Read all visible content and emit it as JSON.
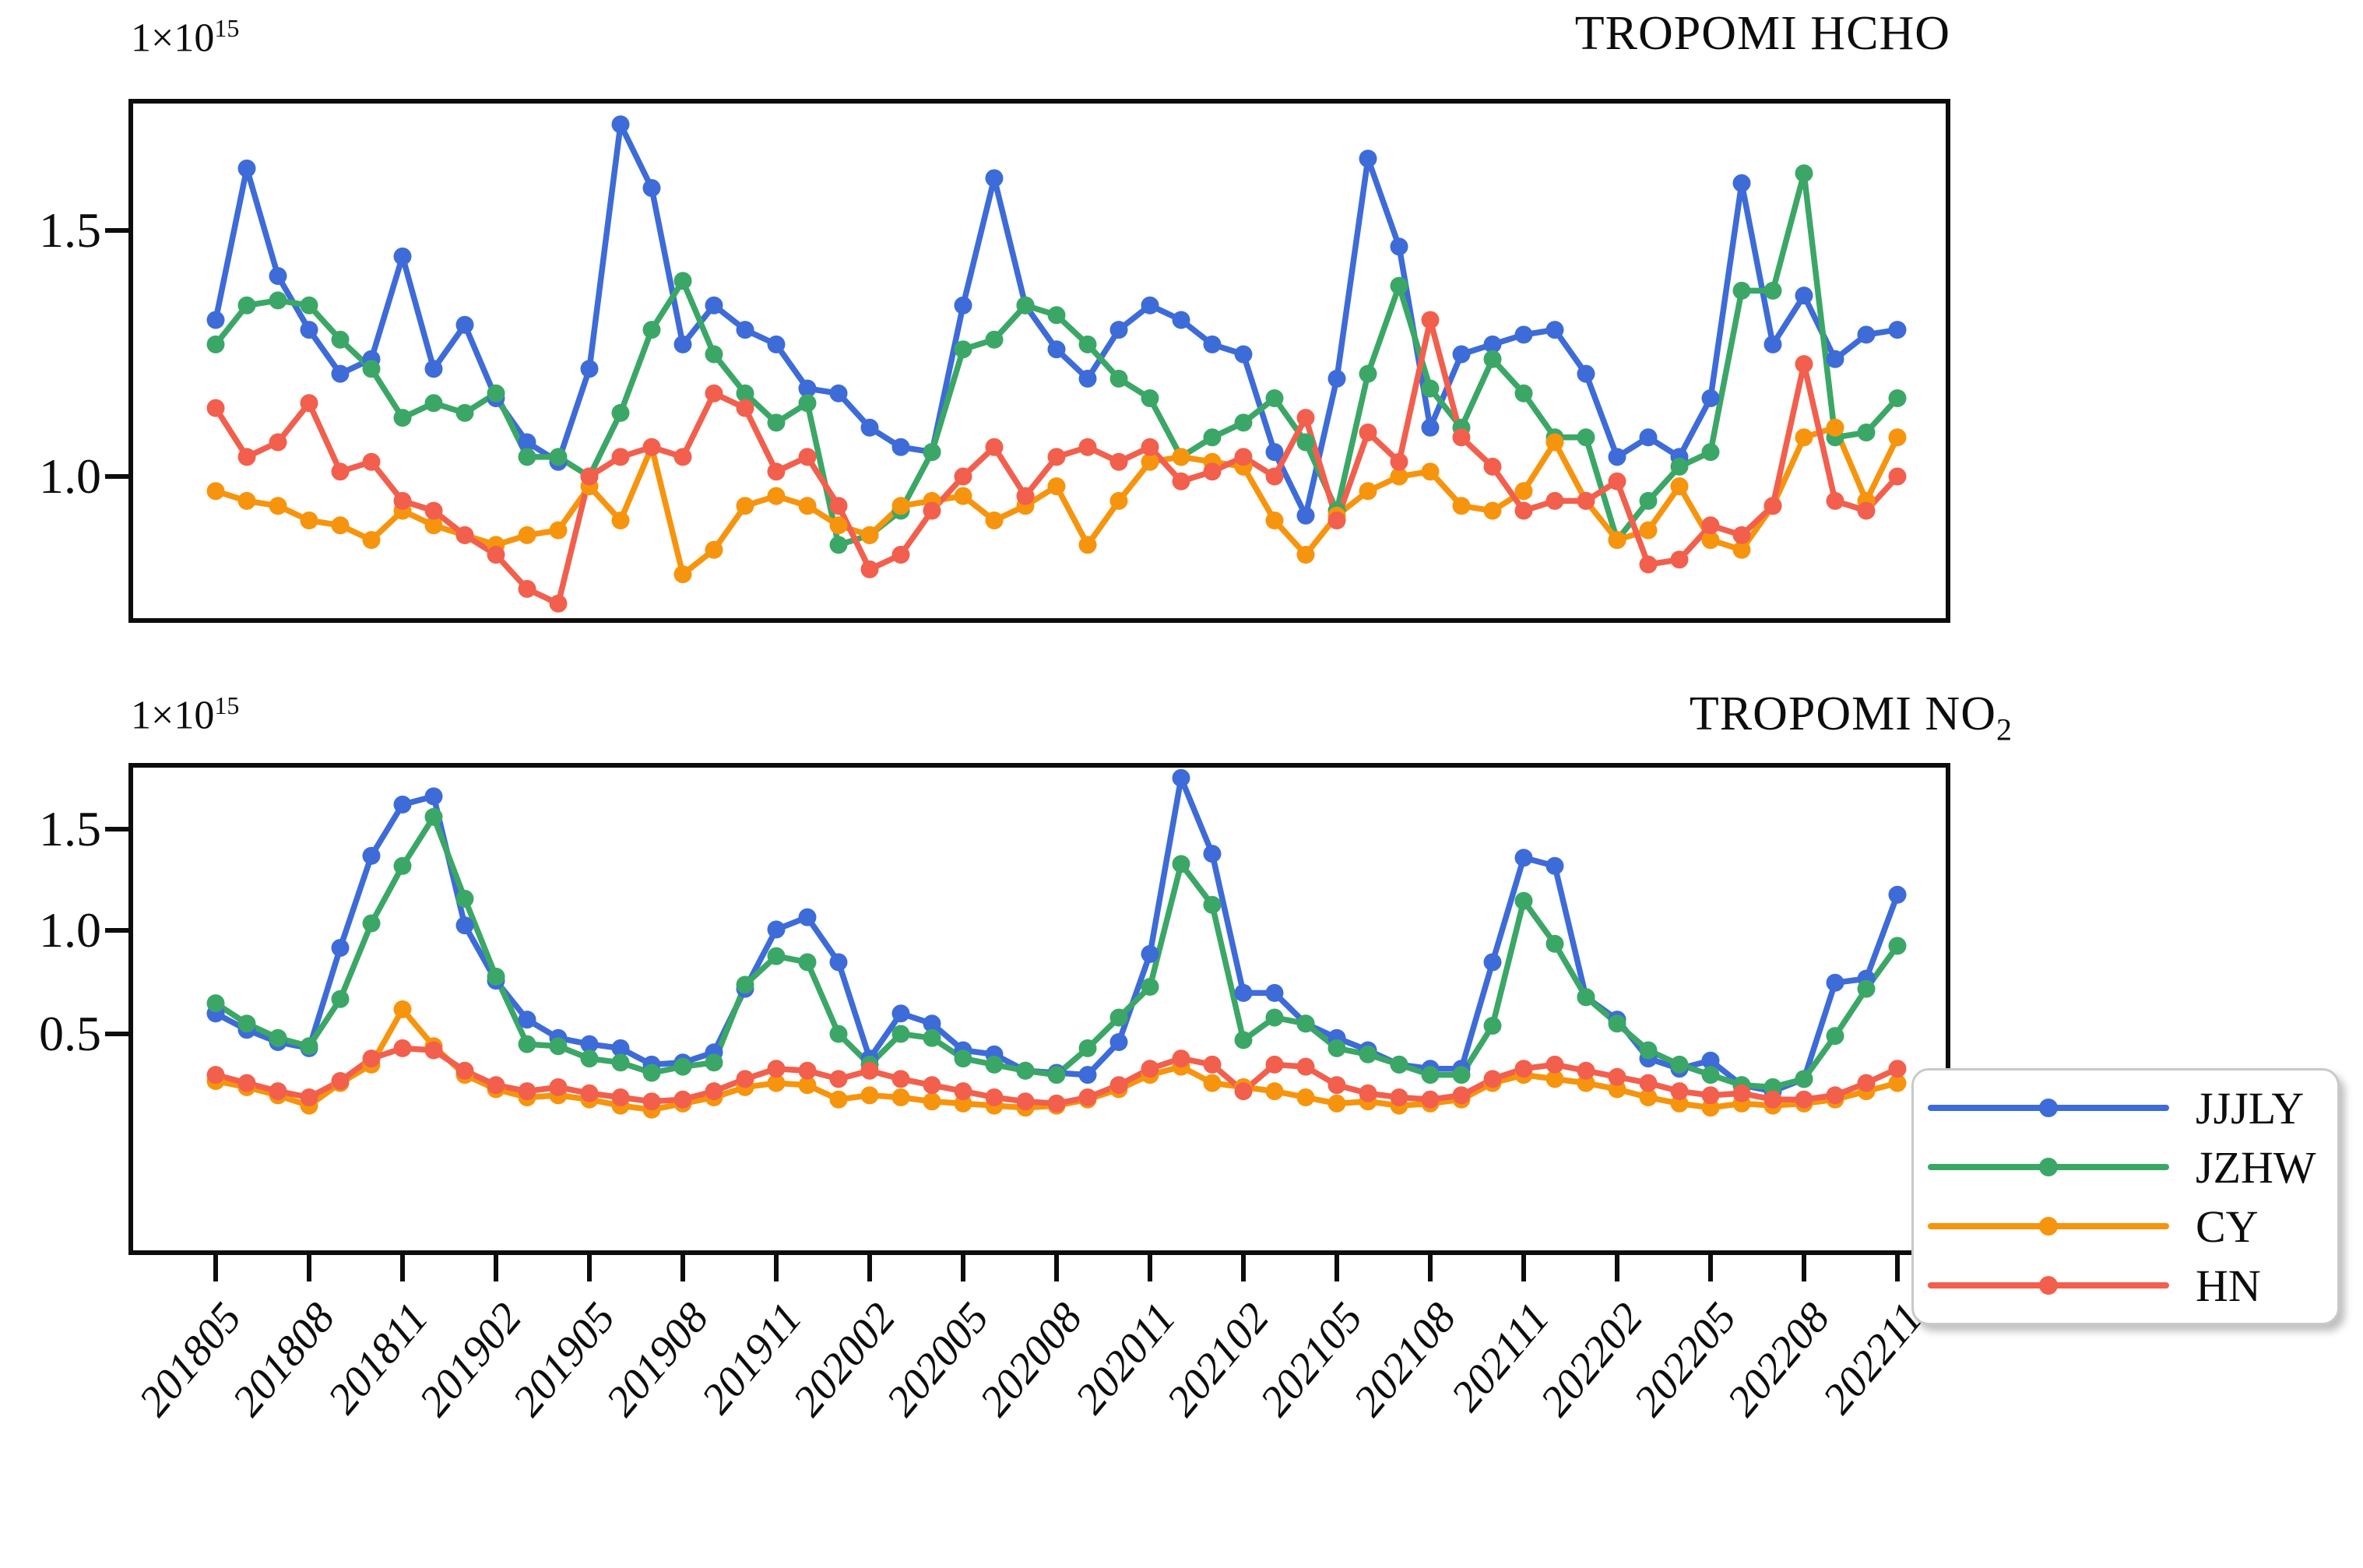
{
  "figure": {
    "background": "#ffffff",
    "top_chart_title": "TROPOMI HCHO",
    "bottom_chart_title_base": "TROPOMI NO",
    "bottom_chart_title_sub": "2",
    "offset_label_base": "1×10",
    "offset_label_exp": "15"
  },
  "colors": {
    "JJJLY": "#3d6bd8",
    "JZHW": "#3ba766",
    "CY": "#f7940d",
    "HN": "#f25f4d",
    "axis": "#0d0d0d",
    "legend_border": "#c9c9c9"
  },
  "legend": {
    "position": "right-center",
    "entries": [
      {
        "label": "JJJLY",
        "color": "#3d6bd8"
      },
      {
        "label": "JZHW",
        "color": "#3ba766"
      },
      {
        "label": "CY",
        "color": "#f7940d"
      },
      {
        "label": "HN",
        "color": "#f25f4d"
      }
    ]
  },
  "x_tick_labels": [
    "201805",
    "201808",
    "201811",
    "201902",
    "201905",
    "201908",
    "201911",
    "202002",
    "202005",
    "202008",
    "202011",
    "202102",
    "202105",
    "202108",
    "202111",
    "202202",
    "202205",
    "202208",
    "202211"
  ],
  "chart_data": [
    {
      "type": "line",
      "title": "TROPOMI HCHO",
      "unit_offset": "1×10^15",
      "ylabel": "",
      "ylim": [
        0.7,
        1.77
      ],
      "yticks": [
        1.0,
        1.5
      ],
      "ytick_labels": [
        "1.0",
        "1.5"
      ],
      "grid": false,
      "x": [
        "201805",
        "201806",
        "201807",
        "201808",
        "201809",
        "201810",
        "201811",
        "201812",
        "201901",
        "201902",
        "201903",
        "201904",
        "201905",
        "201906",
        "201907",
        "201908",
        "201909",
        "201910",
        "201911",
        "201912",
        "202001",
        "202002",
        "202003",
        "202004",
        "202005",
        "202006",
        "202007",
        "202008",
        "202009",
        "202010",
        "202011",
        "202012",
        "202101",
        "202102",
        "202103",
        "202104",
        "202105",
        "202106",
        "202107",
        "202108",
        "202109",
        "202110",
        "202111",
        "202112",
        "202201",
        "202202",
        "202203",
        "202204",
        "202205",
        "202206",
        "202207",
        "202208",
        "202209",
        "202210",
        "202211"
      ],
      "series": [
        {
          "name": "JJJLY",
          "color": "#3d6bd8",
          "values": [
            1.32,
            1.63,
            1.41,
            1.3,
            1.21,
            1.24,
            1.45,
            1.22,
            1.31,
            1.16,
            1.07,
            1.03,
            1.22,
            1.72,
            1.59,
            1.27,
            1.35,
            1.3,
            1.27,
            1.18,
            1.17,
            1.1,
            1.06,
            1.05,
            1.35,
            1.61,
            1.35,
            1.26,
            1.2,
            1.3,
            1.35,
            1.32,
            1.27,
            1.25,
            1.05,
            0.92,
            1.2,
            1.65,
            1.47,
            1.1,
            1.25,
            1.27,
            1.29,
            1.3,
            1.21,
            1.04,
            1.08,
            1.04,
            1.16,
            1.6,
            1.27,
            1.37,
            1.24,
            1.29,
            1.3
          ]
        },
        {
          "name": "JZHW",
          "color": "#3ba766",
          "values": [
            1.27,
            1.35,
            1.36,
            1.35,
            1.28,
            1.22,
            1.12,
            1.15,
            1.13,
            1.17,
            1.04,
            1.04,
            1.0,
            1.13,
            1.3,
            1.4,
            1.25,
            1.17,
            1.11,
            1.15,
            0.86,
            0.88,
            0.93,
            1.05,
            1.26,
            1.28,
            1.35,
            1.33,
            1.27,
            1.2,
            1.16,
            1.04,
            1.08,
            1.11,
            1.16,
            1.07,
            0.93,
            1.21,
            1.39,
            1.18,
            1.1,
            1.24,
            1.17,
            1.08,
            1.08,
            0.87,
            0.95,
            1.02,
            1.05,
            1.38,
            1.38,
            1.62,
            1.08,
            1.09,
            1.16
          ]
        },
        {
          "name": "CY",
          "color": "#f7940d",
          "values": [
            0.97,
            0.95,
            0.94,
            0.91,
            0.9,
            0.87,
            0.93,
            0.9,
            0.88,
            0.86,
            0.88,
            0.89,
            0.98,
            0.91,
            1.06,
            0.8,
            0.85,
            0.94,
            0.96,
            0.94,
            0.9,
            0.88,
            0.94,
            0.95,
            0.96,
            0.91,
            0.94,
            0.98,
            0.86,
            0.95,
            1.03,
            1.04,
            1.03,
            1.02,
            0.91,
            0.84,
            0.92,
            0.97,
            1.0,
            1.01,
            0.94,
            0.93,
            0.97,
            1.07,
            0.95,
            0.87,
            0.89,
            0.98,
            0.87,
            0.85,
            0.94,
            1.08,
            1.1,
            0.95,
            1.08
          ]
        },
        {
          "name": "HN",
          "color": "#f25f4d",
          "values": [
            1.14,
            1.04,
            1.07,
            1.15,
            1.01,
            1.03,
            0.95,
            0.93,
            0.88,
            0.84,
            0.77,
            0.74,
            1.0,
            1.04,
            1.06,
            1.04,
            1.17,
            1.14,
            1.01,
            1.04,
            0.94,
            0.81,
            0.84,
            0.93,
            1.0,
            1.06,
            0.96,
            1.04,
            1.06,
            1.03,
            1.06,
            0.99,
            1.01,
            1.04,
            1.0,
            1.12,
            0.91,
            1.09,
            1.03,
            1.32,
            1.08,
            1.02,
            0.93,
            0.95,
            0.95,
            0.99,
            0.82,
            0.83,
            0.9,
            0.88,
            0.94,
            1.23,
            0.95,
            0.93,
            1.0
          ]
        }
      ]
    },
    {
      "type": "line",
      "title": "TROPOMI NO2",
      "unit_offset": "1×10^15",
      "ylabel": "",
      "ylim": [
        0.0,
        1.9
      ],
      "yticks": [
        0.5,
        1.0,
        1.5
      ],
      "ytick_labels": [
        "0.5",
        "1.0",
        "1.5"
      ],
      "grid": false,
      "x": [
        "201805",
        "201806",
        "201807",
        "201808",
        "201809",
        "201810",
        "201811",
        "201812",
        "201901",
        "201902",
        "201903",
        "201904",
        "201905",
        "201906",
        "201907",
        "201908",
        "201909",
        "201910",
        "201911",
        "201912",
        "202001",
        "202002",
        "202003",
        "202004",
        "202005",
        "202006",
        "202007",
        "202008",
        "202009",
        "202010",
        "202011",
        "202012",
        "202101",
        "202102",
        "202103",
        "202104",
        "202105",
        "202106",
        "202107",
        "202108",
        "202109",
        "202110",
        "202111",
        "202112",
        "202201",
        "202202",
        "202203",
        "202204",
        "202205",
        "202206",
        "202207",
        "202208",
        "202209",
        "202210",
        "202211"
      ],
      "series": [
        {
          "name": "JJJLY",
          "color": "#3d6bd8",
          "values": [
            0.6,
            0.52,
            0.46,
            0.43,
            0.92,
            1.37,
            1.62,
            1.66,
            1.03,
            0.76,
            0.57,
            0.48,
            0.45,
            0.43,
            0.35,
            0.36,
            0.41,
            0.72,
            1.01,
            1.07,
            0.85,
            0.38,
            0.6,
            0.55,
            0.42,
            0.4,
            0.32,
            0.31,
            0.3,
            0.46,
            0.89,
            1.75,
            1.38,
            0.7,
            0.7,
            0.55,
            0.48,
            0.42,
            0.35,
            0.33,
            0.33,
            0.85,
            1.36,
            1.32,
            0.68,
            0.57,
            0.38,
            0.33,
            0.37,
            0.25,
            0.22,
            0.28,
            0.75,
            0.77,
            1.18
          ]
        },
        {
          "name": "JZHW",
          "color": "#3ba766",
          "values": [
            0.65,
            0.55,
            0.48,
            0.44,
            0.67,
            1.04,
            1.32,
            1.56,
            1.16,
            0.78,
            0.45,
            0.44,
            0.38,
            0.36,
            0.31,
            0.34,
            0.36,
            0.74,
            0.88,
            0.85,
            0.5,
            0.35,
            0.5,
            0.48,
            0.38,
            0.35,
            0.32,
            0.3,
            0.43,
            0.58,
            0.73,
            1.33,
            1.13,
            0.47,
            0.58,
            0.55,
            0.43,
            0.4,
            0.35,
            0.3,
            0.3,
            0.54,
            1.15,
            0.94,
            0.68,
            0.55,
            0.42,
            0.35,
            0.3,
            0.25,
            0.24,
            0.28,
            0.49,
            0.72,
            0.93
          ]
        },
        {
          "name": "CY",
          "color": "#f7940d",
          "values": [
            0.27,
            0.24,
            0.2,
            0.15,
            0.26,
            0.35,
            0.62,
            0.44,
            0.3,
            0.23,
            0.19,
            0.2,
            0.18,
            0.15,
            0.13,
            0.16,
            0.19,
            0.24,
            0.26,
            0.25,
            0.18,
            0.2,
            0.19,
            0.17,
            0.16,
            0.15,
            0.14,
            0.15,
            0.18,
            0.23,
            0.3,
            0.34,
            0.26,
            0.24,
            0.22,
            0.19,
            0.16,
            0.17,
            0.15,
            0.16,
            0.18,
            0.26,
            0.3,
            0.28,
            0.26,
            0.23,
            0.19,
            0.16,
            0.14,
            0.16,
            0.15,
            0.16,
            0.18,
            0.22,
            0.26
          ]
        },
        {
          "name": "HN",
          "color": "#f25f4d",
          "values": [
            0.3,
            0.26,
            0.22,
            0.19,
            0.27,
            0.38,
            0.43,
            0.42,
            0.32,
            0.25,
            0.22,
            0.24,
            0.21,
            0.19,
            0.17,
            0.18,
            0.22,
            0.28,
            0.33,
            0.32,
            0.28,
            0.32,
            0.28,
            0.25,
            0.22,
            0.19,
            0.17,
            0.16,
            0.19,
            0.25,
            0.33,
            0.38,
            0.35,
            0.22,
            0.35,
            0.34,
            0.25,
            0.21,
            0.19,
            0.18,
            0.2,
            0.28,
            0.33,
            0.35,
            0.32,
            0.29,
            0.26,
            0.22,
            0.2,
            0.21,
            0.18,
            0.18,
            0.2,
            0.26,
            0.33
          ]
        }
      ]
    }
  ],
  "layout_note": "two stacked monthly time-series panels, shared x axis 201805-202211, legend at middle right"
}
